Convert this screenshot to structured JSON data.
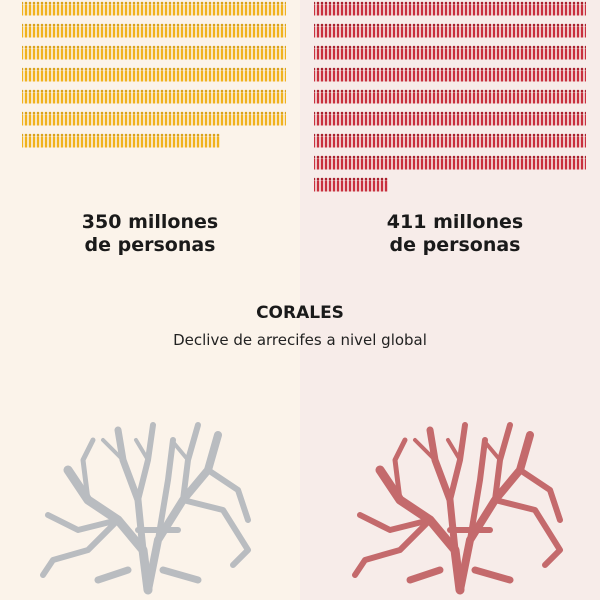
{
  "panels": [
    {
      "label_line1": "350 millones",
      "label_line2": "de personas"
    },
    {
      "label_line1": "411 millones",
      "label_line2": "de personas"
    }
  ],
  "section": {
    "title": "CORALES",
    "subtitle": "Declive de arrecifes a nivel global"
  }
}
